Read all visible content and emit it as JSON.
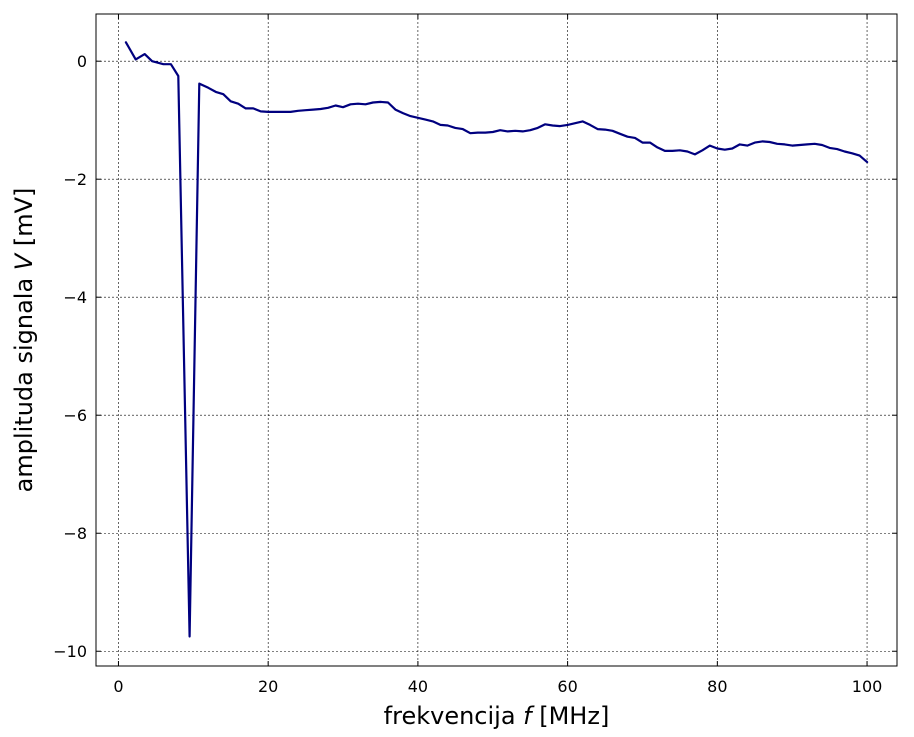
{
  "chart_data": {
    "type": "line",
    "title": "",
    "xlabel_text": "frekvencija ",
    "xlabel_var": "f",
    "xlabel_unit": " [MHz]",
    "ylabel_text": "amplituda signala ",
    "ylabel_var": "V",
    "ylabel_unit": " [mV]",
    "xlim": [
      -3,
      104
    ],
    "ylim": [
      -10.25,
      0.8
    ],
    "xticks": [
      0,
      20,
      40,
      60,
      80,
      100
    ],
    "yticks": [
      0,
      -2,
      -4,
      -6,
      -8,
      -10
    ],
    "xtick_labels": [
      "0",
      "20",
      "40",
      "60",
      "80",
      "100"
    ],
    "ytick_labels": [
      "0",
      "−2",
      "−4",
      "−6",
      "−8",
      "−10"
    ],
    "grid": true,
    "line_color": "#00007f",
    "series": [
      {
        "x": [
          1,
          2.3,
          3.5,
          4.5,
          6,
          7,
          8,
          9.5,
          10.8,
          12,
          13,
          14,
          15,
          16,
          17,
          18,
          19,
          20,
          21.5,
          23,
          24,
          25,
          26,
          27,
          28,
          29,
          30,
          31,
          32,
          33,
          34,
          35,
          36,
          37,
          38,
          39,
          40,
          41,
          42,
          43,
          44,
          45,
          46,
          47,
          48,
          49,
          50,
          51,
          52,
          53,
          54,
          55,
          56,
          57,
          58,
          59,
          60,
          61,
          62,
          63,
          64,
          65,
          66,
          67,
          68,
          69,
          70,
          71,
          72,
          73,
          74,
          75,
          76,
          77,
          78,
          79,
          80,
          81,
          82,
          83,
          84,
          85,
          86,
          87,
          88,
          89,
          90,
          91,
          92,
          93,
          94,
          95,
          96,
          97,
          98,
          99,
          100
        ],
        "y": [
          0.32,
          0.03,
          0.12,
          0.0,
          -0.05,
          -0.05,
          -0.25,
          -9.75,
          -0.38,
          -0.45,
          -0.52,
          -0.56,
          -0.68,
          -0.72,
          -0.8,
          -0.8,
          -0.85,
          -0.86,
          -0.86,
          -0.86,
          -0.84,
          -0.83,
          -0.82,
          -0.81,
          -0.79,
          -0.75,
          -0.78,
          -0.73,
          -0.72,
          -0.73,
          -0.7,
          -0.69,
          -0.7,
          -0.82,
          -0.88,
          -0.93,
          -0.96,
          -0.99,
          -1.02,
          -1.08,
          -1.09,
          -1.13,
          -1.15,
          -1.22,
          -1.21,
          -1.21,
          -1.2,
          -1.17,
          -1.19,
          -1.18,
          -1.19,
          -1.17,
          -1.13,
          -1.07,
          -1.09,
          -1.1,
          -1.08,
          -1.05,
          -1.02,
          -1.08,
          -1.15,
          -1.16,
          -1.18,
          -1.23,
          -1.28,
          -1.3,
          -1.38,
          -1.38,
          -1.46,
          -1.52,
          -1.52,
          -1.51,
          -1.53,
          -1.58,
          -1.51,
          -1.43,
          -1.48,
          -1.5,
          -1.48,
          -1.41,
          -1.43,
          -1.38,
          -1.36,
          -1.37,
          -1.4,
          -1.41,
          -1.43,
          -1.42,
          -1.41,
          -1.4,
          -1.42,
          -1.47,
          -1.49,
          -1.53,
          -1.56,
          -1.6,
          -1.71
        ]
      }
    ]
  }
}
